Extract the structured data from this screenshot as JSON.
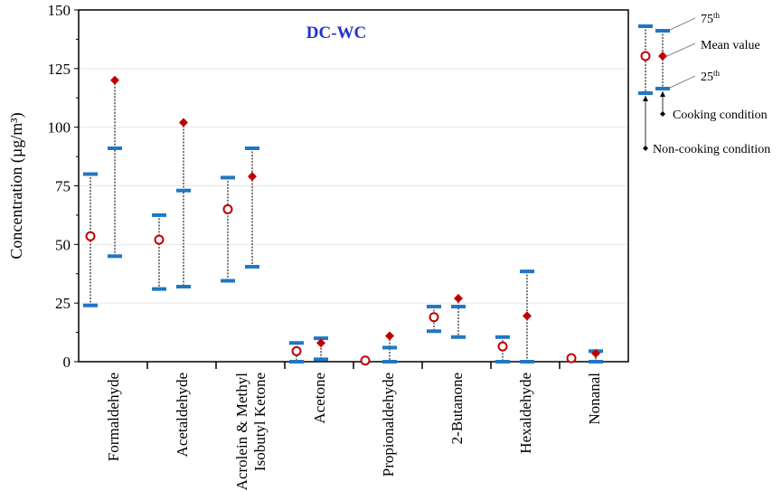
{
  "chart_data": {
    "type": "range",
    "title": "DC-WC",
    "xlabel": "",
    "ylabel": "Concentration (µg/m³)",
    "ylim": [
      0,
      150
    ],
    "yticks": [
      0,
      25,
      50,
      75,
      100,
      125,
      150
    ],
    "grid": true,
    "categories": [
      "Formaldehyde",
      "Acetaldehyde",
      "Acrolein & Methyl Isobutyl Ketone",
      "Acetone",
      "Propionaldehyde",
      "2-Butanone",
      "Hexaldehyde",
      "Nonanal"
    ],
    "series": [
      {
        "name": "Non-cooking condition",
        "color": "#c00000",
        "marker": "open-circle",
        "p75": [
          80,
          62.5,
          78.5,
          8,
          null,
          23.5,
          10.5,
          null
        ],
        "mean": [
          53.5,
          52,
          65,
          4.5,
          0.5,
          19,
          6.5,
          1.5
        ],
        "p25": [
          24,
          31,
          34.5,
          0,
          null,
          13,
          0,
          null
        ]
      },
      {
        "name": "Cooking condition",
        "color": "#c00000",
        "marker": "filled-diamond",
        "p75": [
          91,
          73,
          91,
          10,
          6,
          23.5,
          38.5,
          4.5
        ],
        "mean": [
          120,
          102,
          79,
          8,
          11,
          27,
          19.5,
          3.5
        ],
        "p25": [
          45,
          32,
          40.5,
          1,
          0,
          10.5,
          0,
          0
        ]
      }
    ],
    "legend": {
      "placement": "right",
      "p75_label": "75th",
      "mean_label": "Mean value",
      "p25_label": "25th",
      "cooking_label": "Cooking condition",
      "noncooking_label": "Non-cooking condition"
    },
    "bar_color": "#1f77c4"
  }
}
